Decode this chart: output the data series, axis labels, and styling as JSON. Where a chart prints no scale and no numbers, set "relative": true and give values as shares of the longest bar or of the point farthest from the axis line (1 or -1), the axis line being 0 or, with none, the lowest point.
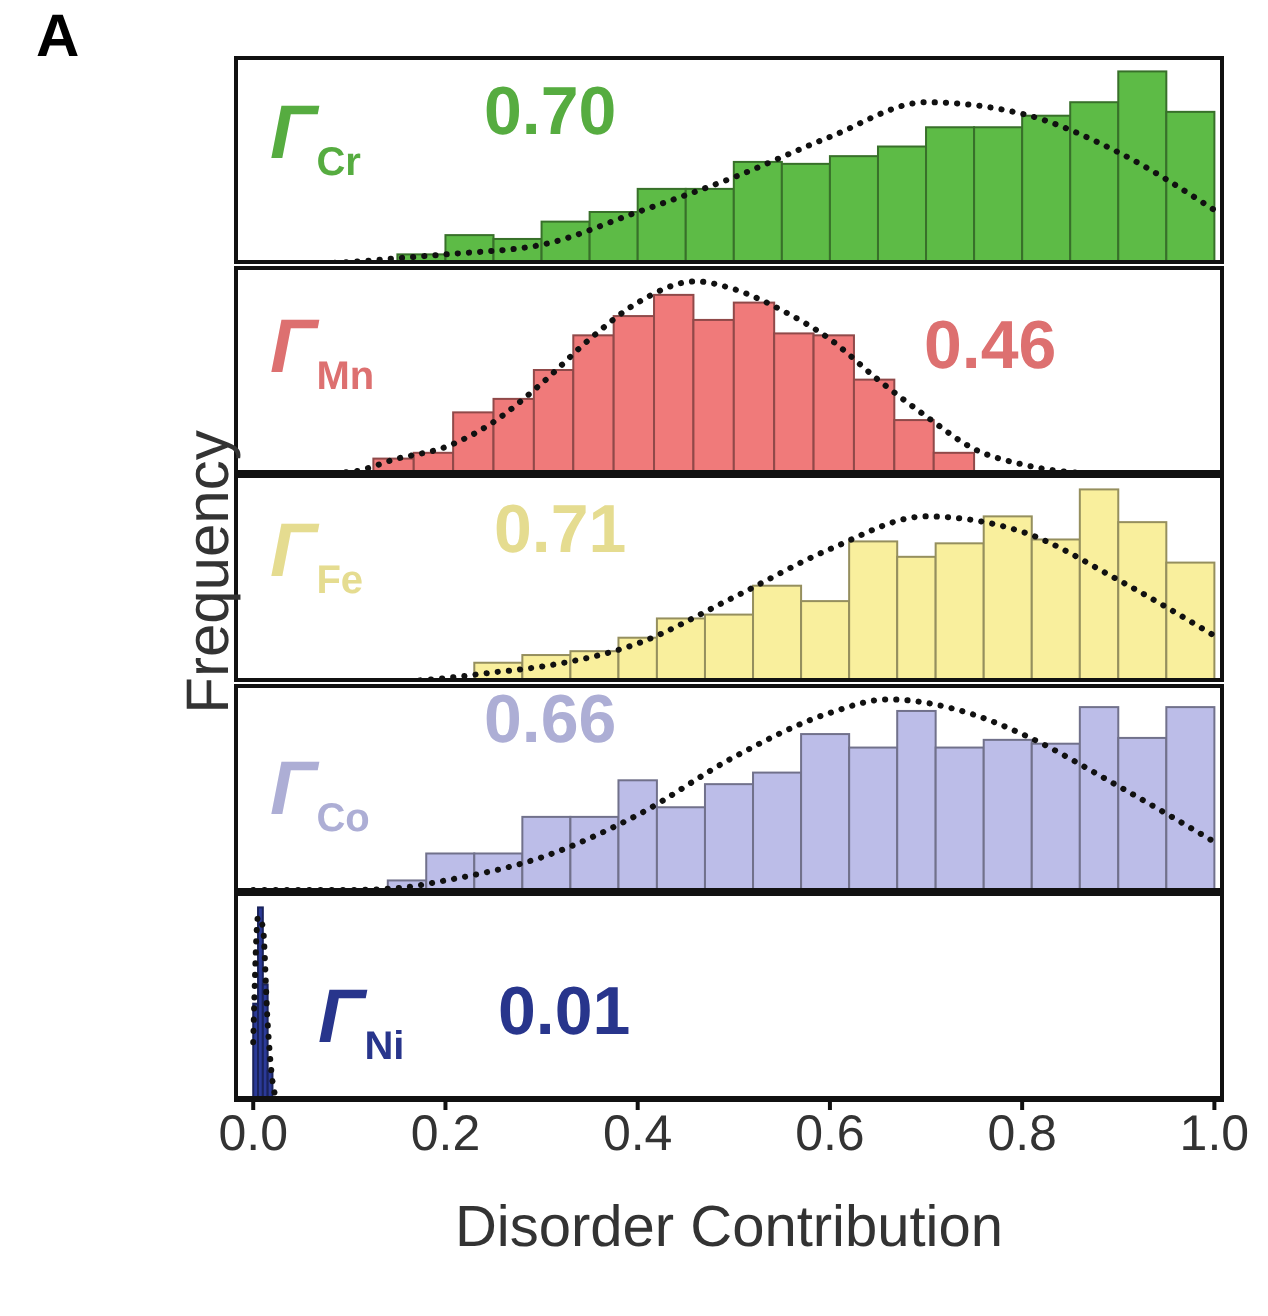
{
  "chart_data": [
    {
      "type": "histogram",
      "title": "A",
      "relative": true,
      "xlim": [
        -0.02,
        1.01
      ],
      "xticks": [
        0,
        0.2,
        0.4,
        0.6,
        0.8,
        1
      ],
      "tick_labels": false,
      "annotations": [
        "Γ$_{Cr}$",
        "0.70"
      ],
      "series": [
        {
          "type": "histogram",
          "color": "#5dbb46",
          "bins": [
            0.15,
            0.2,
            0.25,
            0.3,
            0.35,
            0.4,
            0.45,
            0.5,
            0.55,
            0.6,
            0.65,
            0.7,
            0.75,
            0.8,
            0.85,
            0.9,
            0.95,
            1.0
          ],
          "values": [
            0.05,
            0.15,
            0.13,
            0.22,
            0.27,
            0.39,
            0.39,
            0.53,
            0.52,
            0.56,
            0.61,
            0.71,
            0.71,
            0.77,
            0.84,
            1,
            0.79
          ]
        },
        {
          "type": "line",
          "color": "#111111",
          "line_style": "dotted",
          "x": [
            0.05,
            0.1,
            0.15,
            0.2,
            0.3,
            0.4,
            0.5,
            0.6,
            0.7,
            0.8,
            0.9,
            1.0
          ],
          "values": [
            0,
            0.01,
            0.03,
            0.05,
            0.1,
            0.27,
            0.45,
            0.66,
            0.84,
            0.78,
            0.58,
            0.28
          ]
        }
      ]
    },
    {
      "type": "histogram",
      "relative": true,
      "xlim": [
        -0.02,
        1.01
      ],
      "xticks": [
        0,
        0.2,
        0.4,
        0.6,
        0.8,
        1
      ],
      "tick_labels": false,
      "annotations": [
        "Γ$_{Mn}$",
        "0.46"
      ],
      "series": [
        {
          "type": "histogram",
          "color": "#f07a7a",
          "bins": [
            0.125,
            0.167,
            0.208,
            0.25,
            0.292,
            0.333,
            0.375,
            0.417,
            0.458,
            0.5,
            0.542,
            0.583,
            0.625,
            0.667,
            0.708,
            0.75
          ],
          "values": [
            0.08,
            0.11,
            0.32,
            0.39,
            0.54,
            0.72,
            0.82,
            0.93,
            0.8,
            0.89,
            0.73,
            0.72,
            0.49,
            0.28,
            0.11
          ]
        },
        {
          "type": "line",
          "color": "#111111",
          "line_style": "dotted",
          "x": [
            0.05,
            0.1,
            0.15,
            0.2,
            0.25,
            0.3,
            0.35,
            0.4,
            0.46,
            0.5,
            0.55,
            0.6,
            0.65,
            0.7,
            0.75,
            0.8,
            0.85,
            0.9
          ],
          "values": [
            0,
            0.01,
            0.08,
            0.14,
            0.27,
            0.47,
            0.7,
            0.89,
            1,
            0.96,
            0.85,
            0.7,
            0.49,
            0.3,
            0.13,
            0.05,
            0.01,
            0
          ]
        }
      ]
    },
    {
      "type": "histogram",
      "relative": true,
      "ylabel": "Frequency",
      "xlim": [
        -0.02,
        1.01
      ],
      "xticks": [
        0,
        0.2,
        0.4,
        0.6,
        0.8,
        1
      ],
      "tick_labels": false,
      "annotations": [
        "Γ$_{Fe}$",
        "0.71"
      ],
      "series": [
        {
          "type": "histogram",
          "color": "#f9ef9d",
          "bins": [
            0.23,
            0.28,
            0.33,
            0.38,
            0.42,
            0.47,
            0.52,
            0.57,
            0.62,
            0.67,
            0.71,
            0.76,
            0.81,
            0.86,
            0.9,
            0.95,
            1.0
          ],
          "values": [
            0.1,
            0.14,
            0.16,
            0.23,
            0.33,
            0.35,
            0.5,
            0.42,
            0.73,
            0.65,
            0.72,
            0.86,
            0.74,
            1,
            0.83,
            0.62
          ]
        },
        {
          "type": "line",
          "color": "#111111",
          "line_style": "dotted",
          "x": [
            0.15,
            0.2,
            0.25,
            0.3,
            0.4,
            0.5,
            0.6,
            0.7,
            0.8,
            0.9,
            1.0
          ],
          "values": [
            0,
            0.02,
            0.05,
            0.08,
            0.2,
            0.44,
            0.69,
            0.86,
            0.78,
            0.53,
            0.24
          ]
        }
      ]
    },
    {
      "type": "histogram",
      "relative": true,
      "xlim": [
        -0.02,
        1.01
      ],
      "xticks": [
        0,
        0.2,
        0.4,
        0.6,
        0.8,
        1
      ],
      "tick_labels": false,
      "annotations": [
        "Γ$_{Co}$",
        "0.66"
      ],
      "series": [
        {
          "type": "histogram",
          "color": "#bcbde8",
          "bins": [
            0.14,
            0.18,
            0.23,
            0.28,
            0.33,
            0.38,
            0.42,
            0.47,
            0.52,
            0.57,
            0.62,
            0.67,
            0.71,
            0.76,
            0.81,
            0.86,
            0.9,
            0.95,
            1.0
          ],
          "values": [
            0.06,
            0.2,
            0.2,
            0.39,
            0.39,
            0.58,
            0.44,
            0.56,
            0.62,
            0.82,
            0.75,
            0.94,
            0.75,
            0.79,
            0.77,
            0.96,
            0.8,
            0.96
          ]
        },
        {
          "type": "line",
          "color": "#111111",
          "line_style": "dotted",
          "x": [
            0,
            0.1,
            0.15,
            0.2,
            0.3,
            0.4,
            0.5,
            0.6,
            0.66,
            0.75,
            0.8,
            0.9,
            1.0
          ],
          "values": [
            0.01,
            0.01,
            0.02,
            0.06,
            0.18,
            0.4,
            0.7,
            0.93,
            1,
            0.92,
            0.82,
            0.55,
            0.26
          ]
        }
      ]
    },
    {
      "type": "histogram",
      "relative": true,
      "xlabel": "Disorder Contribution",
      "xlim": [
        -0.02,
        1.01
      ],
      "xticks": [
        {
          "value": 0,
          "label": "0.0"
        },
        0.2,
        0.4,
        0.6,
        0.8,
        {
          "value": 1,
          "label": "1.0"
        }
      ],
      "tick_labels": "x",
      "annotations": [
        "Γ$_{Ni}$",
        "0.01"
      ],
      "series": [
        {
          "type": "histogram",
          "color": "#2b3a98",
          "bins": [
            0,
            0.005,
            0.01,
            0.015,
            0.02
          ],
          "values": [
            0.5,
            1,
            0.6,
            0.15
          ]
        },
        {
          "type": "line",
          "color": "#111111",
          "line_style": "dotted",
          "x": [
            0,
            0.005,
            0.01,
            0.015,
            0.02,
            0.025
          ],
          "values": [
            0.3,
            0.95,
            0.9,
            0.4,
            0.1,
            0
          ]
        }
      ]
    }
  ]
}
